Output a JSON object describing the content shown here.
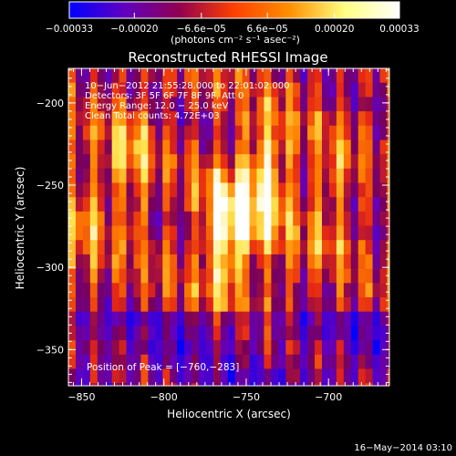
{
  "chart_data": {
    "type": "heatmap",
    "title": "Reconstructed RHESSI Image",
    "xlabel": "Heliocentric X (arcsec)",
    "ylabel": "Heliocentric Y (arcsec)",
    "xlim": [
      -858,
      -663
    ],
    "ylim": [
      -372,
      -179
    ],
    "x_ticks": [
      -850,
      -800,
      -750,
      -700
    ],
    "x_tick_labels": [
      "−850",
      "−800",
      "−750",
      "−700"
    ],
    "y_ticks": [
      -200,
      -250,
      -300,
      -350
    ],
    "y_tick_labels": [
      "−200",
      "−250",
      "−300",
      "−350"
    ],
    "colorbar": {
      "range": [
        -0.00033,
        0.00033
      ],
      "tick_labels": [
        "−0.00033",
        "−0.00020",
        "−6.6e−05",
        "6.6e−05",
        "0.00020",
        "0.00033"
      ],
      "unit_label": "(photons cm⁻² s⁻¹ asec⁻²)",
      "colors": [
        "#0000ff",
        "#6000c0",
        "#900050",
        "#ff4000",
        "#ff9000",
        "#ffff80",
        "#ffffff"
      ]
    },
    "info_lines": [
      "10−Jun−2012 21:55:28.000 to 22:01:02.000",
      "Detectors: 3F 5F 6F 7F 8F 9F, Att 0",
      "Energy Range: 12.0 − 25.0 keV",
      "Clean     Total counts: 4.72E+03"
    ],
    "peak_label": "Position of Peak = [−760,−283]",
    "peak": {
      "x": -760,
      "y": -283
    },
    "sources": [
      {
        "x": -762,
        "y": -279,
        "amplitude": 0.00033
      },
      {
        "x": -738,
        "y": -250,
        "amplitude": 0.00026
      },
      {
        "x": -820,
        "y": -240,
        "amplitude": 0.00016
      },
      {
        "x": -850,
        "y": -270,
        "amplitude": 0.00012
      },
      {
        "x": -700,
        "y": -260,
        "amplitude": 0.00012
      }
    ],
    "grid": false
  },
  "timestamp": "16−May−2014 03:10"
}
